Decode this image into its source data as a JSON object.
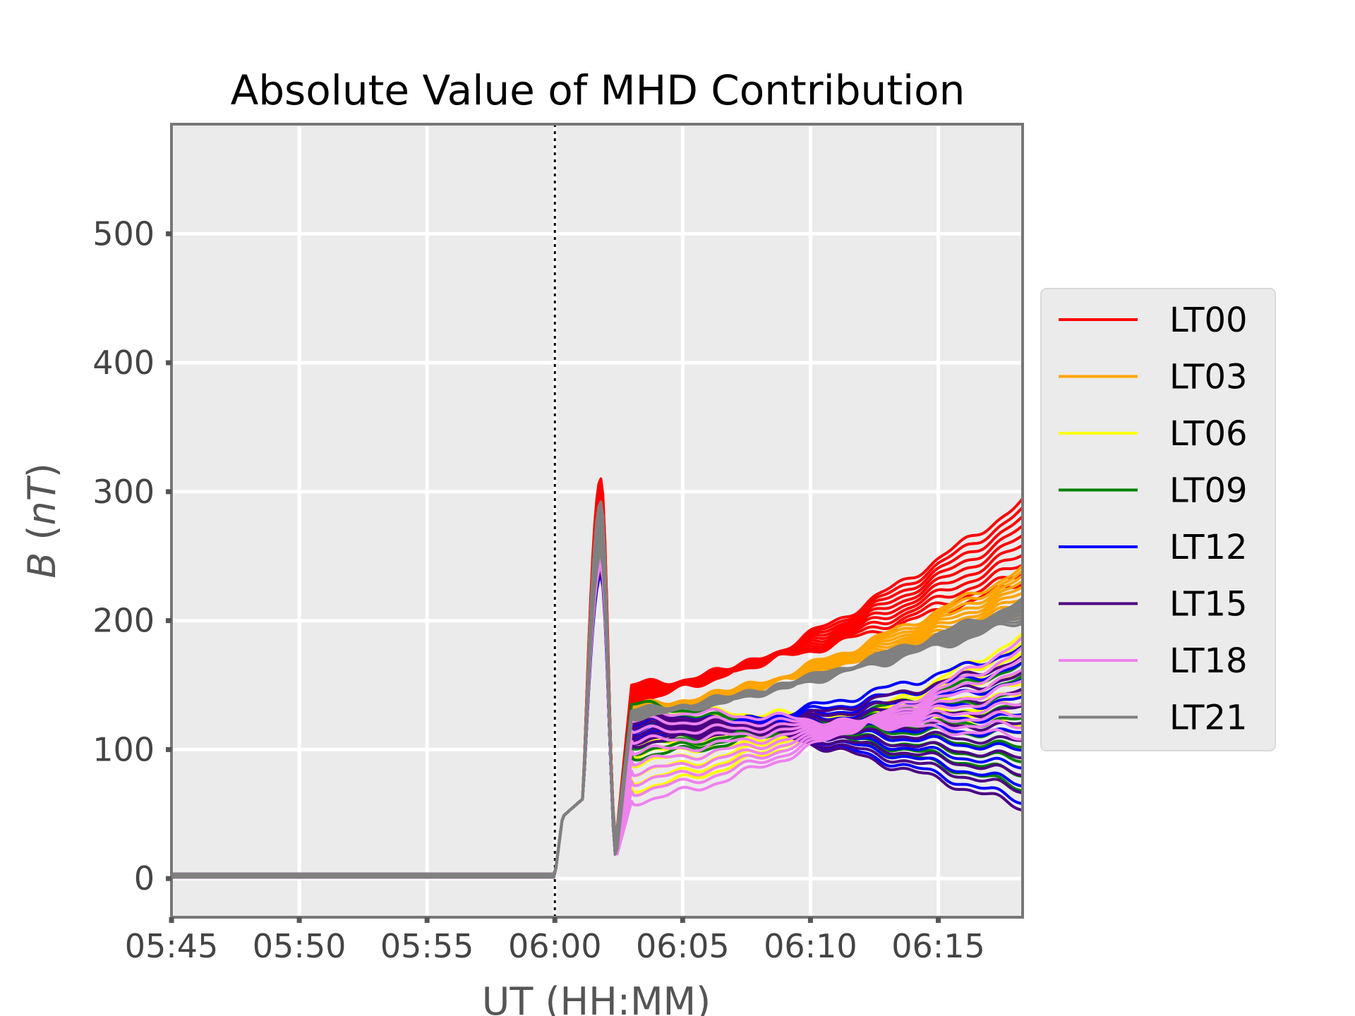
{
  "chart_data": {
    "type": "line",
    "title": "Absolute Value of MHD Contribution",
    "xlabel": "UT (HH:MM)",
    "ylabel_main": "B",
    "ylabel_unit": "nT",
    "x_tick_labels": [
      "05:45",
      "05:50",
      "05:55",
      "06:00",
      "06:05",
      "06:10",
      "06:15"
    ],
    "x_tick_minutes": [
      0,
      5,
      10,
      15,
      20,
      25,
      30
    ],
    "x_range_minutes": [
      0,
      33.3
    ],
    "x_origin_time": "05:45",
    "y_ticks": [
      0,
      100,
      200,
      300,
      400,
      500
    ],
    "ylim": [
      -30,
      585
    ],
    "grid": true,
    "vertical_marker_minute": 15,
    "legend_position": "right",
    "curves_per_group": 10,
    "series": [
      {
        "name": "LT00",
        "color": "#ff0000",
        "base_minute_18": 138,
        "range_minute_18": 12,
        "end_top": 292,
        "end_bottom": 230,
        "peak": 310
      },
      {
        "name": "LT03",
        "color": "#ffa500",
        "base_minute_18": 128,
        "range_minute_18": 6,
        "end_top": 240,
        "end_bottom": 205,
        "peak": 292
      },
      {
        "name": "LT06",
        "color": "#ffff00",
        "base_minute_18": 70,
        "range_minute_18": 60,
        "end_top": 188,
        "end_bottom": 120,
        "peak": 285
      },
      {
        "name": "LT09",
        "color": "#008000",
        "base_minute_18": 95,
        "range_minute_18": 40,
        "end_top": 165,
        "end_bottom": 70,
        "peak": 280
      },
      {
        "name": "LT12",
        "color": "#0000ff",
        "base_minute_18": 110,
        "range_minute_18": 20,
        "end_top": 178,
        "end_bottom": 60,
        "peak": 275
      },
      {
        "name": "LT15",
        "color": "#4b0082",
        "base_minute_18": 105,
        "range_minute_18": 25,
        "end_top": 170,
        "end_bottom": 55,
        "peak": 278
      },
      {
        "name": "LT18",
        "color": "#ee82ee",
        "base_minute_18": 60,
        "range_minute_18": 70,
        "end_top": 185,
        "end_bottom": 110,
        "peak": 282
      },
      {
        "name": "LT21",
        "color": "#808080",
        "base_minute_18": 126,
        "range_minute_18": 4,
        "end_top": 215,
        "end_bottom": 200,
        "peak": 292
      }
    ]
  }
}
